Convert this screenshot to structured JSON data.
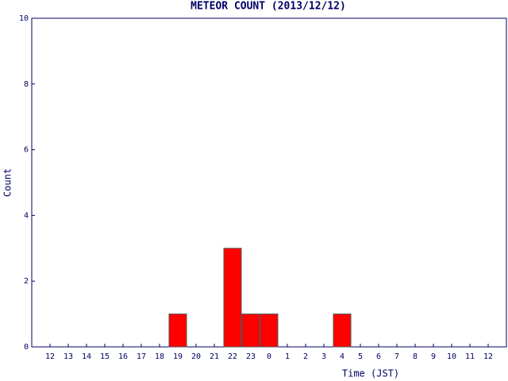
{
  "chart_data": {
    "type": "bar",
    "title": "METEOR COUNT (2013/12/12)",
    "x_label": "Time (JST)",
    "y_label": "Count",
    "categories": [
      "12",
      "13",
      "14",
      "15",
      "16",
      "17",
      "18",
      "19",
      "20",
      "21",
      "22",
      "23",
      "0",
      "1",
      "2",
      "3",
      "4",
      "5",
      "6",
      "7",
      "8",
      "9",
      "10",
      "11",
      "12"
    ],
    "values": [
      0,
      0,
      0,
      0,
      0,
      0,
      0,
      1,
      0,
      0,
      3,
      1,
      1,
      0,
      0,
      0,
      1,
      0,
      0,
      0,
      0,
      0,
      0,
      0,
      0
    ],
    "color": "#ff0000",
    "ylim": [
      0,
      10
    ],
    "yticks": [
      0,
      2,
      4,
      6,
      8,
      10
    ],
    "grid": false
  }
}
